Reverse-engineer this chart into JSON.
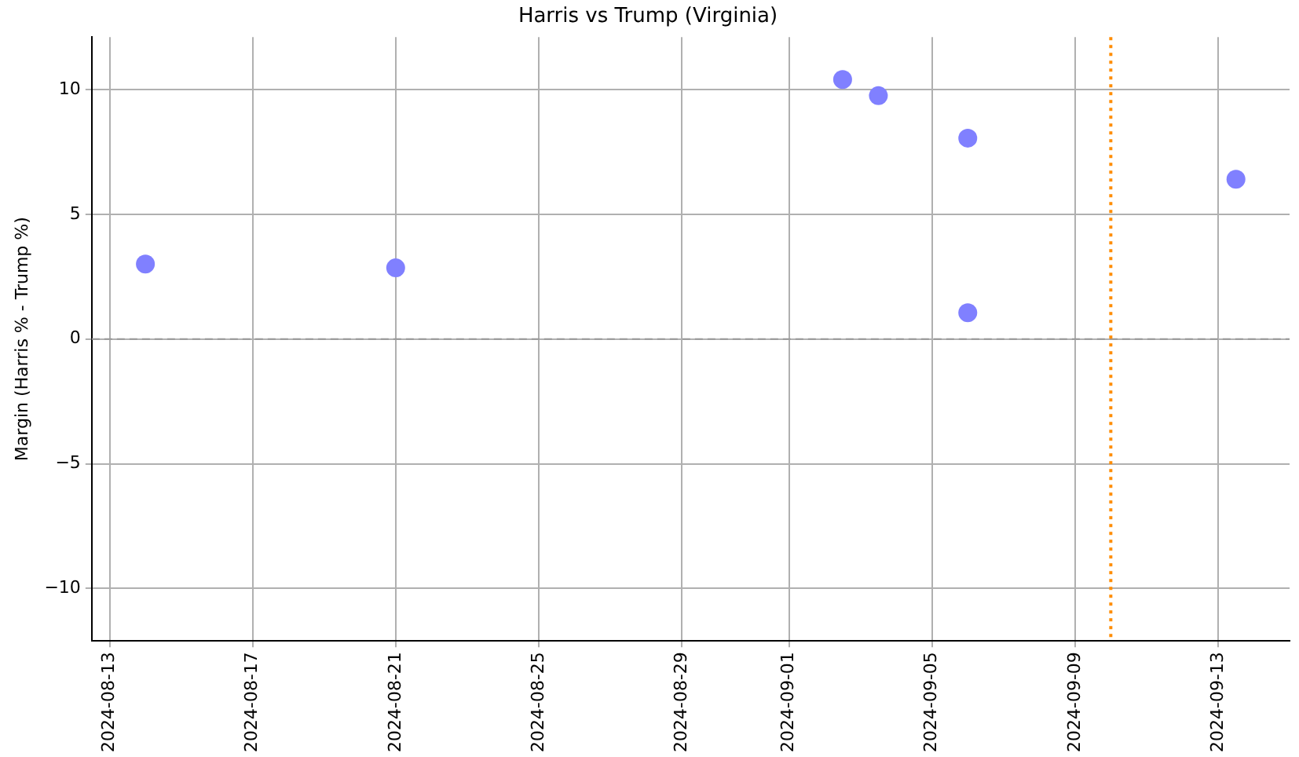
{
  "chart_data": {
    "type": "scatter",
    "title": "Harris vs Trump (Virginia)",
    "ylabel": "Margin (Harris % - Trump %)",
    "x": [
      "2024-08-14",
      "2024-08-21",
      "2024-09-02T12:00",
      "2024-09-03T12:00",
      "2024-09-06",
      "2024-09-06",
      "2024-09-13T12:00"
    ],
    "series": [
      {
        "color": "#8080ff",
        "values": [
          3.0,
          2.85,
          10.4,
          9.75,
          8.05,
          1.05,
          6.4
        ]
      }
    ],
    "xlim": [
      "2024-08-12T12:00",
      "2024-09-15T00:00"
    ],
    "xticks": [
      "2024-08-13",
      "2024-08-17",
      "2024-08-21",
      "2024-08-25",
      "2024-08-29",
      "2024-09-01",
      "2024-09-05",
      "2024-09-09",
      "2024-09-13"
    ],
    "ylim": [
      -12.1,
      12.1
    ],
    "yticks": [
      {
        "value": -10,
        "label": "−10"
      },
      {
        "value": -5,
        "label": "−5"
      },
      0,
      5,
      10
    ],
    "ref_lines": [
      {
        "axis": "y",
        "value": 0,
        "color": "#999999",
        "line_style": "dashed"
      },
      {
        "axis": "x",
        "value": "2024-09-10",
        "color": "#ff8c00",
        "line_style": "dotted"
      }
    ],
    "grid": true,
    "marker": "circle",
    "legend": false
  }
}
